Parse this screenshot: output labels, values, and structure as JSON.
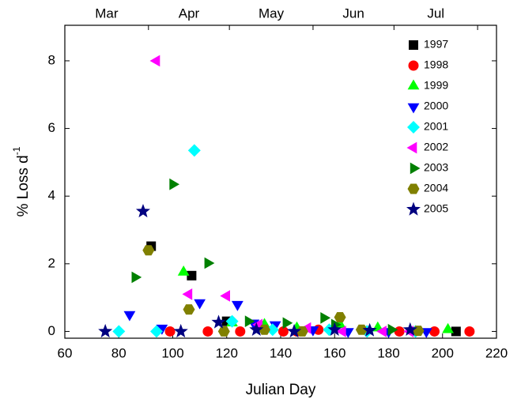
{
  "chart_data": {
    "type": "scatter",
    "xlabel": "Julian Day",
    "ylabel": "% Loss d",
    "ylabel_superscript": "-1",
    "xlim": [
      60,
      220
    ],
    "ylim": [
      -0.2,
      9.05
    ],
    "xticks": [
      60,
      80,
      100,
      120,
      140,
      160,
      180,
      200,
      220
    ],
    "yticks": [
      0,
      2,
      4,
      6,
      8
    ],
    "x2ticks": [
      {
        "value": 75.5,
        "label": "Mar"
      },
      {
        "value": 106,
        "label": "Apr"
      },
      {
        "value": 136.5,
        "label": "May"
      },
      {
        "value": 167,
        "label": "Jun"
      },
      {
        "value": 197.5,
        "label": "Jul"
      }
    ],
    "x2_boundaries": [
      91,
      121,
      152,
      182,
      213
    ],
    "series": [
      {
        "name": "1997",
        "color": "#000000",
        "marker": "square",
        "x": [
          92,
          107,
          120,
          205
        ],
        "values": [
          2.52,
          1.65,
          0.3,
          0
        ]
      },
      {
        "name": "1998",
        "color": "#ff0000",
        "marker": "circle",
        "x": [
          99,
          113,
          125,
          141,
          146,
          154,
          184,
          197,
          210
        ],
        "values": [
          0,
          0,
          0,
          0,
          0,
          0.05,
          0,
          0,
          0
        ]
      },
      {
        "name": "1999",
        "color": "#00ff00",
        "marker": "triangle-up",
        "x": [
          104,
          122,
          134,
          146,
          162,
          176,
          202
        ],
        "values": [
          1.75,
          0.25,
          0.2,
          0.1,
          0.2,
          0.1,
          0.05
        ]
      },
      {
        "name": "2000",
        "color": "#0000ff",
        "marker": "triangle-down",
        "x": [
          84,
          96,
          110,
          124,
          130,
          138,
          152,
          165,
          180,
          194
        ],
        "values": [
          0.5,
          0.1,
          0.85,
          0.8,
          0.25,
          0.2,
          0.05,
          0,
          0,
          0
        ]
      },
      {
        "name": "2001",
        "color": "#00ffff",
        "marker": "diamond",
        "x": [
          80,
          94,
          108,
          122,
          137,
          158,
          172,
          190
        ],
        "values": [
          0,
          0,
          5.35,
          0.3,
          0.05,
          0.05,
          0,
          0
        ]
      },
      {
        "name": "2002",
        "color": "#ff00ff",
        "marker": "triangle-left",
        "x": [
          94,
          106,
          120,
          132,
          150,
          163,
          178,
          188
        ],
        "values": [
          8.0,
          1.1,
          1.05,
          0.2,
          0.1,
          0,
          0,
          0
        ]
      },
      {
        "name": "2003",
        "color": "#008000",
        "marker": "triangle-right",
        "x": [
          86,
          100,
          113,
          128,
          142,
          156,
          160,
          181
        ],
        "values": [
          1.6,
          4.35,
          2.02,
          0.3,
          0.25,
          0.4,
          0.2,
          0.05
        ]
      },
      {
        "name": "2004",
        "color": "#808000",
        "marker": "hexagon",
        "x": [
          91,
          106,
          119,
          134,
          148,
          162,
          170,
          191
        ],
        "values": [
          2.4,
          0.65,
          0,
          0.05,
          0,
          0.42,
          0.05,
          0.02
        ]
      },
      {
        "name": "2005",
        "color": "#000080",
        "marker": "star",
        "x": [
          75,
          89,
          103,
          117,
          131,
          145,
          160,
          173,
          188
        ],
        "values": [
          0,
          3.55,
          0,
          0.27,
          0.05,
          0,
          0.05,
          0.03,
          0.05
        ]
      }
    ]
  }
}
